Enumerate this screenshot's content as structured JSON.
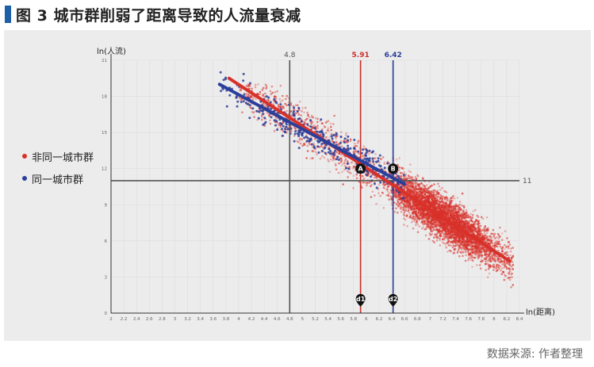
{
  "title": "图 3  城市群削弱了距离导致的人流量衰减",
  "source": "数据来源: 作者整理",
  "legend": [
    {
      "label": "非同一城市群",
      "color": "#d8312a"
    },
    {
      "label": "同一城市群",
      "color": "#2b3f9a"
    }
  ],
  "chart_data": {
    "type": "scatter",
    "xlabel": "ln(距离)",
    "ylabel": "ln(人流)",
    "xlim": [
      2,
      8.4
    ],
    "ylim": [
      0,
      21
    ],
    "xticks": [
      "2",
      "2.2",
      "2.4",
      "2.6",
      "2.8",
      "3",
      "3.2",
      "3.4",
      "3.6",
      "3.8",
      "4",
      "4.2",
      "4.4",
      "4.6",
      "4.8",
      "5",
      "5.2",
      "5.4",
      "5.6",
      "5.8",
      "6",
      "6.2",
      "6.4",
      "6.6",
      "6.8",
      "7",
      "7.2",
      "7.4",
      "7.6",
      "7.8",
      "8",
      "8.2",
      "8.4"
    ],
    "yticks": [
      "0",
      "3",
      "6",
      "9",
      "12",
      "15",
      "18",
      "21"
    ],
    "grid": true,
    "reference_lines": [
      {
        "axis": "x",
        "value": 4.8,
        "label": "4.8",
        "color": "#555555"
      },
      {
        "axis": "x",
        "value": 5.91,
        "label": "5.91",
        "color": "#c9302c"
      },
      {
        "axis": "x",
        "value": 6.42,
        "label": "6.42",
        "color": "#2b3f9a"
      },
      {
        "axis": "y",
        "value": 11,
        "label": "11",
        "color": "#555555"
      }
    ],
    "series": [
      {
        "name": "非同一城市群",
        "color": "#d8312a",
        "fit": {
          "x": [
            3.85,
            8.25
          ],
          "y": [
            19.5,
            4.3
          ]
        }
      },
      {
        "name": "同一城市群",
        "color": "#2b3f9a",
        "fit": {
          "x": [
            3.7,
            6.6
          ],
          "y": [
            19.0,
            10.7
          ]
        }
      }
    ],
    "annotations": [
      {
        "label": "A",
        "x": 5.91,
        "y": 12
      },
      {
        "label": "B",
        "x": 6.42,
        "y": 12
      },
      {
        "label": "d1",
        "x": 5.91,
        "y": 0.8
      },
      {
        "label": "d2",
        "x": 6.42,
        "y": 0.8
      }
    ]
  }
}
